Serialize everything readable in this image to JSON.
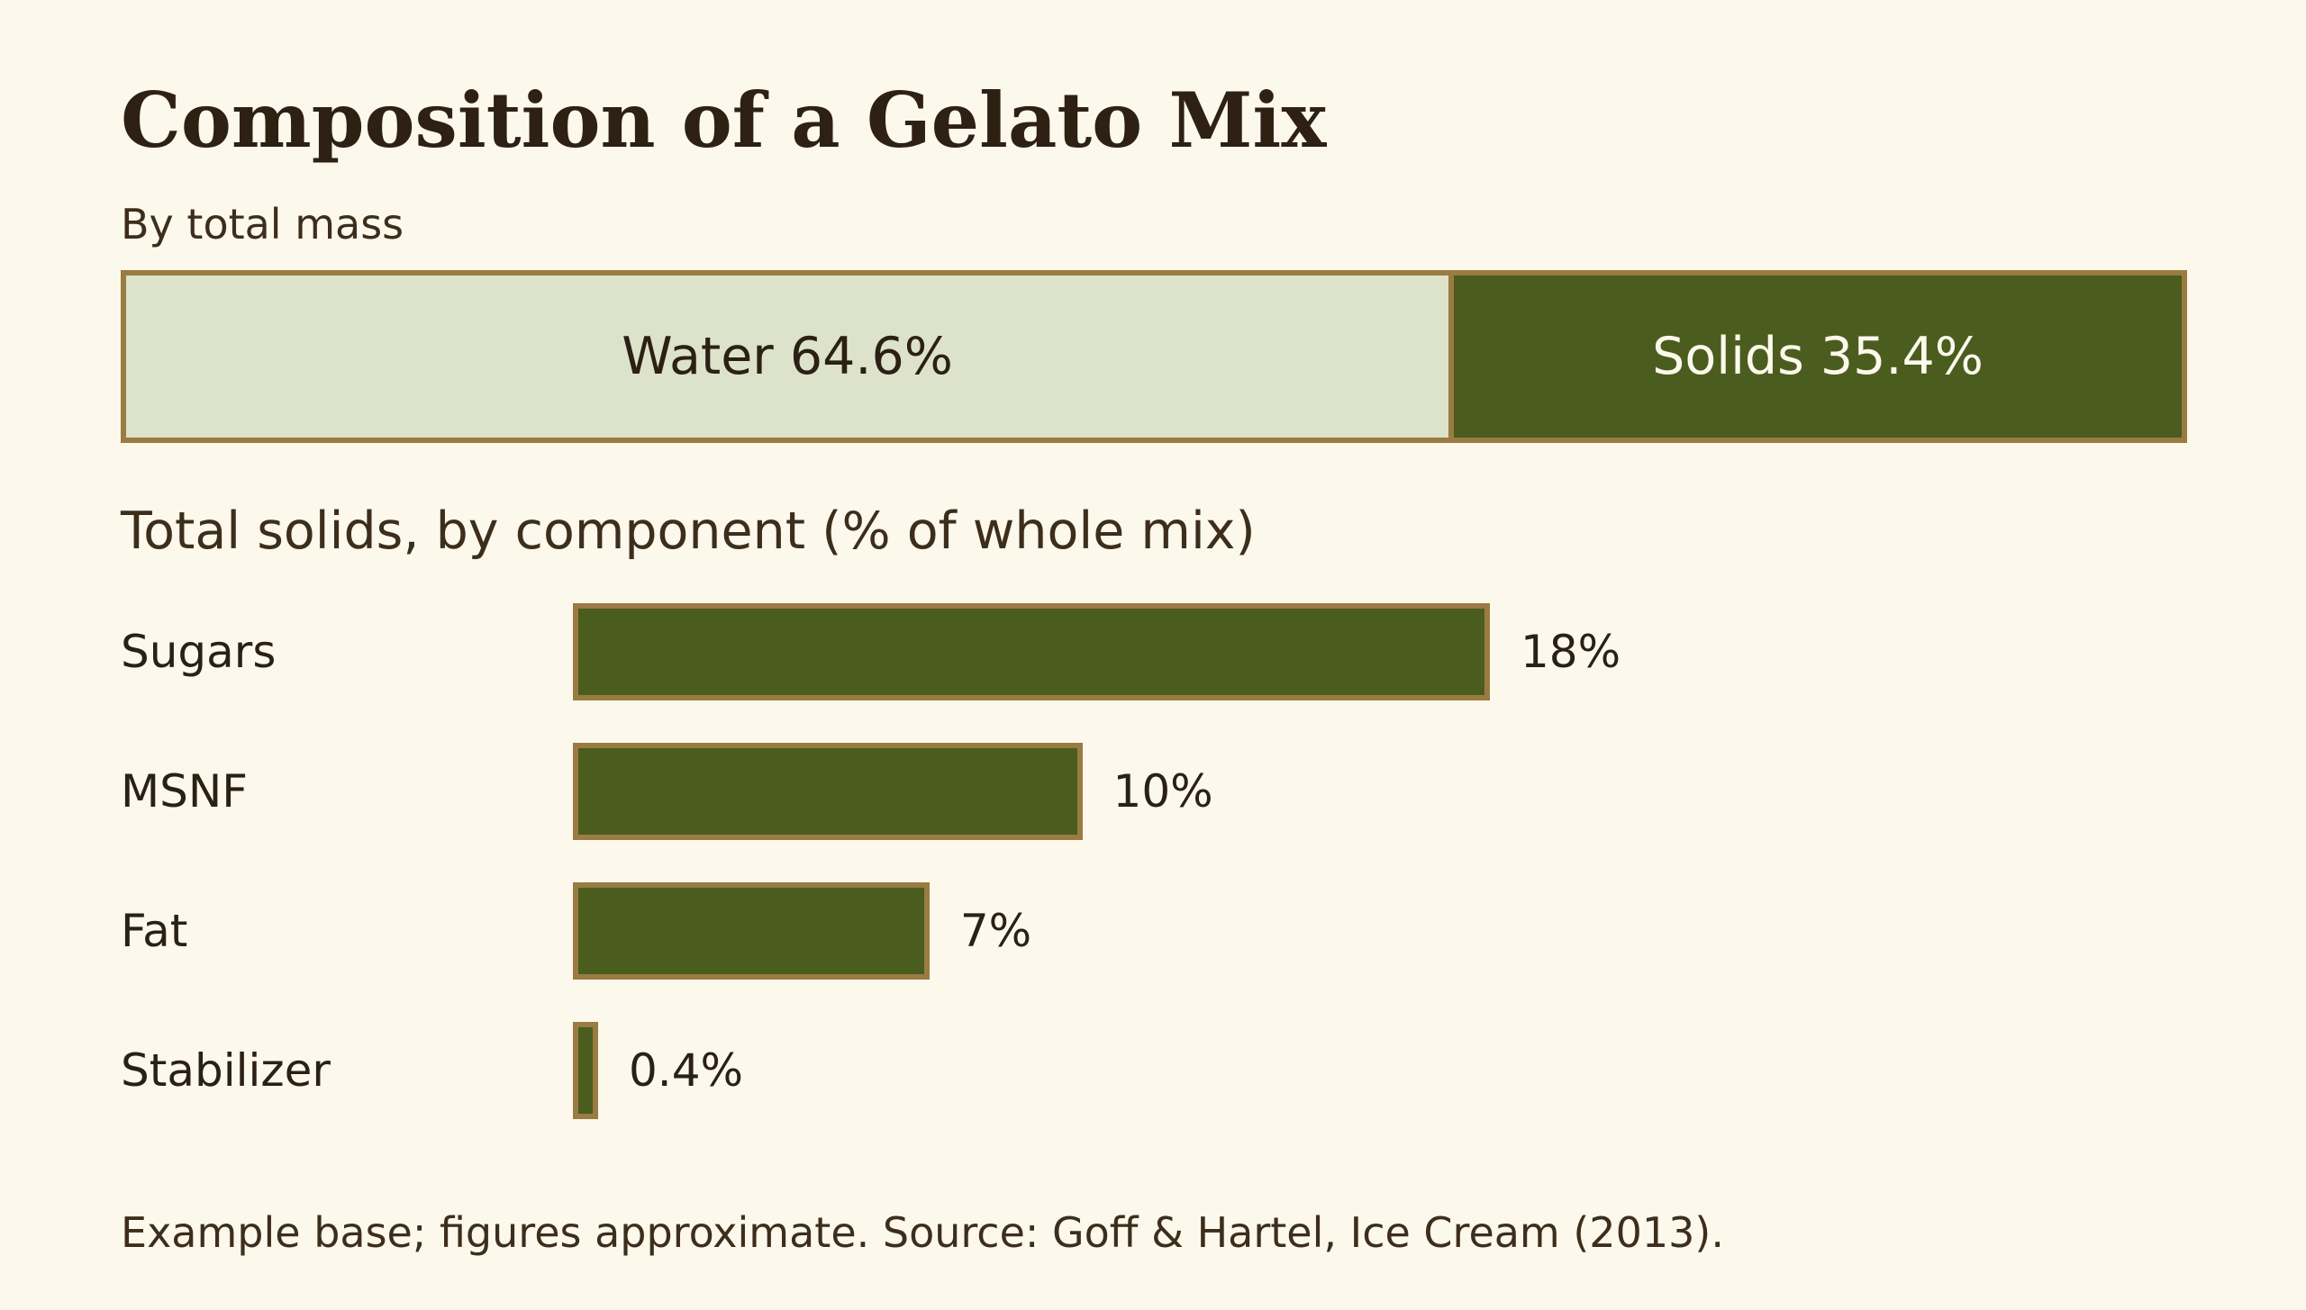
{
  "title": "Composition of a Gelato Mix",
  "subtitle": "By total mass",
  "colors": {
    "background": "#fdf8ec",
    "water": "#dde2cb",
    "solids": "#4b5c1f",
    "bar_fill": "#4b5c1f",
    "border": "#9a7b42",
    "text_dark": "#2b2014"
  },
  "chart_data": [
    {
      "type": "bar",
      "orientation": "horizontal-stacked",
      "series": [
        {
          "name": "Water",
          "value": 64.6,
          "label": "Water 64.6%"
        },
        {
          "name": "Solids",
          "value": 35.4,
          "label": "Solids 35.4%"
        }
      ],
      "xlim": [
        0,
        100
      ]
    },
    {
      "type": "bar",
      "orientation": "horizontal",
      "title": "Total solids, by component (% of whole mix)",
      "categories": [
        "Sugars",
        "MSNF",
        "Fat",
        "Stabilizer"
      ],
      "values": [
        18,
        10,
        7,
        0.4
      ],
      "value_labels": [
        "18%",
        "10%",
        "7%",
        "0.4%"
      ],
      "xlim": [
        0,
        18
      ]
    }
  ],
  "footnote": "Example base; figures approximate. Source: Goff & Hartel, Ice Cream (2013)."
}
